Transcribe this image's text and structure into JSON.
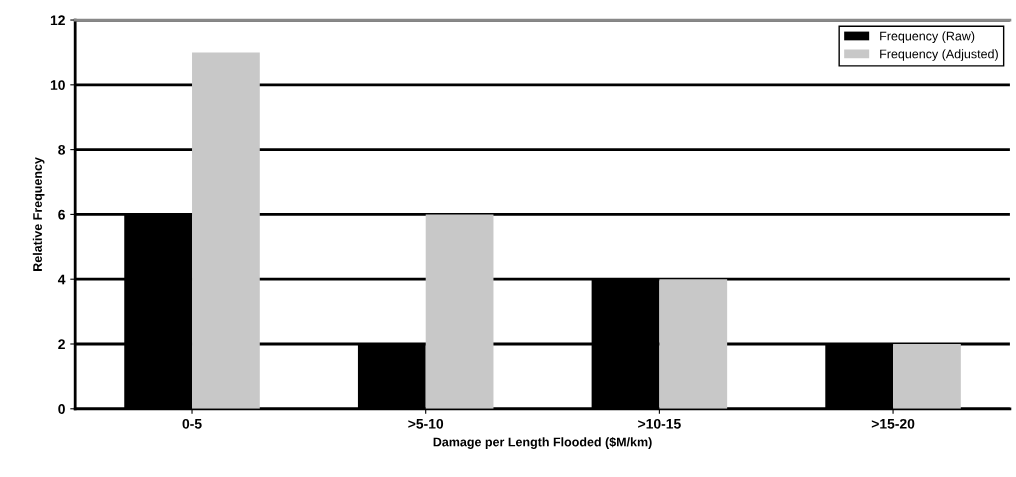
{
  "chart_data": {
    "type": "bar",
    "xlabel": "Damage per Length Flooded ($M/km)",
    "ylabel": "Relative Frequency",
    "categories": [
      "0-5",
      ">5-10",
      ">10-15",
      ">15-20"
    ],
    "series": [
      {
        "name": "Frequency (Raw)",
        "color": "#000000",
        "values": [
          6,
          2,
          4,
          2
        ]
      },
      {
        "name": "Frequency (Adjusted)",
        "color": "#c8c8c8",
        "values": [
          11,
          6,
          4,
          2
        ]
      }
    ],
    "ylim": [
      0,
      12
    ],
    "yticks": [
      0,
      2,
      4,
      6,
      8,
      10,
      12
    ],
    "grid": "y",
    "legend": "top right"
  }
}
